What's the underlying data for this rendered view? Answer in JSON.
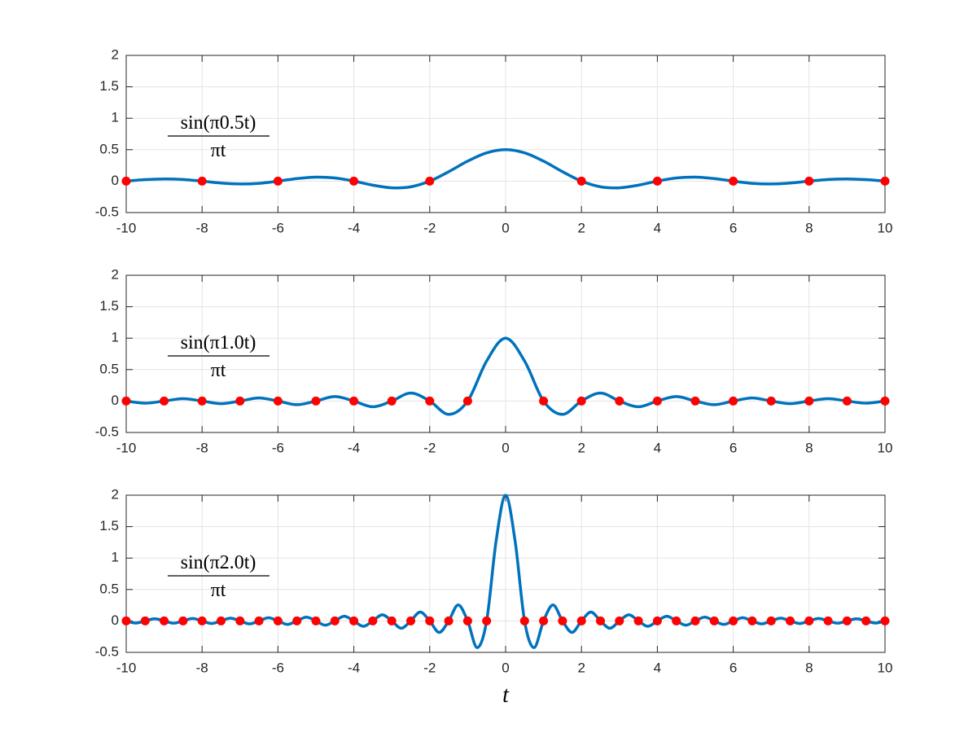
{
  "chart_data": [
    {
      "type": "line",
      "annotation": {
        "numerator": "sin(π0.5t)",
        "denominator": "πt"
      },
      "xlim": [
        -10,
        10
      ],
      "xticks": [
        -10,
        -8,
        -6,
        -4,
        -2,
        0,
        2,
        4,
        6,
        8,
        10
      ],
      "ylim": [
        -0.5,
        2
      ],
      "yticks": [
        -0.5,
        0,
        0.5,
        1,
        1.5,
        2
      ],
      "grid": true,
      "series": [
        {
          "style": "line",
          "color": "#0072bd",
          "x": [
            -10,
            -9.5,
            -9,
            -8.5,
            -8,
            -7.5,
            -7,
            -6.5,
            -6,
            -5.5,
            -5,
            -4.5,
            -4,
            -3.5,
            -3,
            -2.5,
            -2,
            -1.5,
            -1,
            -0.5,
            0,
            0.5,
            1,
            1.5,
            2,
            2.5,
            3,
            3.5,
            4,
            4.5,
            5,
            5.5,
            6,
            6.5,
            7,
            7.5,
            8,
            8.5,
            9,
            9.5,
            10
          ],
          "values": [
            0,
            0.024,
            0.035,
            0.027,
            0,
            -0.03,
            -0.045,
            -0.035,
            0,
            0.041,
            0.064,
            0.05,
            0,
            -0.064,
            -0.106,
            -0.09,
            0,
            0.15,
            0.318,
            0.45,
            0.5,
            0.45,
            0.318,
            0.15,
            0,
            -0.09,
            -0.106,
            -0.064,
            0,
            0.05,
            0.064,
            0.041,
            0,
            -0.035,
            -0.045,
            -0.03,
            0,
            0.027,
            0.035,
            0.024,
            0
          ]
        },
        {
          "style": "markers",
          "color": "#ff0000",
          "x": [
            -10,
            -8,
            -6,
            -4,
            -2,
            2,
            4,
            6,
            8,
            10
          ],
          "values": [
            0,
            0,
            0,
            0,
            0,
            0,
            0,
            0,
            0,
            0
          ]
        }
      ]
    },
    {
      "type": "line",
      "annotation": {
        "numerator": "sin(π1.0t)",
        "denominator": "πt"
      },
      "xlim": [
        -10,
        10
      ],
      "xticks": [
        -10,
        -8,
        -6,
        -4,
        -2,
        0,
        2,
        4,
        6,
        8,
        10
      ],
      "ylim": [
        -0.5,
        2
      ],
      "yticks": [
        -0.5,
        0,
        0.5,
        1,
        1.5,
        2
      ],
      "grid": true,
      "series": [
        {
          "style": "line",
          "color": "#0072bd",
          "x": [
            -10,
            -9.5,
            -9,
            -8.5,
            -8,
            -7.5,
            -7,
            -6.5,
            -6,
            -5.5,
            -5,
            -4.5,
            -4,
            -3.5,
            -3,
            -2.5,
            -2,
            -1.5,
            -1,
            -0.5,
            0,
            0.5,
            1,
            1.5,
            2,
            2.5,
            3,
            3.5,
            4,
            4.5,
            5,
            5.5,
            6,
            6.5,
            7,
            7.5,
            8,
            8.5,
            9,
            9.5,
            10
          ],
          "values": [
            0,
            -0.034,
            0,
            0.037,
            0,
            -0.042,
            0,
            0.049,
            0,
            -0.058,
            0,
            0.071,
            0,
            -0.091,
            0,
            0.127,
            0,
            -0.212,
            0,
            0.637,
            1,
            0.637,
            0,
            -0.212,
            0,
            0.127,
            0,
            -0.091,
            0,
            0.071,
            0,
            -0.058,
            0,
            0.049,
            0,
            -0.042,
            0,
            0.037,
            0,
            -0.034,
            0
          ]
        },
        {
          "style": "markers",
          "color": "#ff0000",
          "x": [
            -10,
            -9,
            -8,
            -7,
            -6,
            -5,
            -4,
            -3,
            -2,
            -1,
            1,
            2,
            3,
            4,
            5,
            6,
            7,
            8,
            9,
            10
          ],
          "values": [
            0,
            0,
            0,
            0,
            0,
            0,
            0,
            0,
            0,
            0,
            0,
            0,
            0,
            0,
            0,
            0,
            0,
            0,
            0,
            0
          ]
        }
      ]
    },
    {
      "type": "line",
      "annotation": {
        "numerator": "sin(π2.0t)",
        "denominator": "πt"
      },
      "xlabel": "t",
      "xlim": [
        -10,
        10
      ],
      "xticks": [
        -10,
        -8,
        -6,
        -4,
        -2,
        0,
        2,
        4,
        6,
        8,
        10
      ],
      "ylim": [
        -0.5,
        2
      ],
      "yticks": [
        -0.5,
        0,
        0.5,
        1,
        1.5,
        2
      ],
      "grid": true,
      "series": [
        {
          "style": "line",
          "color": "#0072bd",
          "x": [
            -10,
            -9.75,
            -9.5,
            -9.25,
            -9,
            -8.75,
            -8.5,
            -8.25,
            -8,
            -7.75,
            -7.5,
            -7.25,
            -7,
            -6.75,
            -6.5,
            -6.25,
            -6,
            -5.75,
            -5.5,
            -5.25,
            -5,
            -4.75,
            -4.5,
            -4.25,
            -4,
            -3.75,
            -3.5,
            -3.25,
            -3,
            -2.75,
            -2.5,
            -2.25,
            -2,
            -1.75,
            -1.5,
            -1.25,
            -1,
            -0.75,
            -0.5,
            -0.25,
            0,
            0.25,
            0.5,
            0.75,
            1,
            1.25,
            1.5,
            1.75,
            2,
            2.25,
            2.5,
            2.75,
            3,
            3.25,
            3.5,
            3.75,
            4,
            4.25,
            4.5,
            4.75,
            5,
            5.25,
            5.5,
            5.75,
            6,
            6.25,
            6.5,
            6.75,
            7,
            7.25,
            7.5,
            7.75,
            8,
            8.25,
            8.5,
            8.75,
            9,
            9.25,
            9.5,
            9.75,
            10
          ],
          "values": [
            0,
            -0.033,
            0,
            0.034,
            0,
            -0.036,
            0,
            0.039,
            0,
            -0.041,
            0,
            0.044,
            0,
            -0.047,
            0,
            0.051,
            0,
            -0.055,
            0,
            0.061,
            0,
            -0.067,
            0,
            0.075,
            0,
            -0.085,
            0,
            0.098,
            0,
            -0.116,
            0,
            0.141,
            0,
            -0.182,
            0,
            0.255,
            0,
            -0.424,
            0,
            1.273,
            2,
            1.273,
            0,
            -0.424,
            0,
            0.255,
            0,
            -0.182,
            0,
            0.141,
            0,
            -0.116,
            0,
            0.098,
            0,
            -0.085,
            0,
            0.075,
            0,
            -0.067,
            0,
            0.061,
            0,
            -0.055,
            0,
            0.051,
            0,
            -0.047,
            0,
            0.044,
            0,
            -0.041,
            0,
            0.039,
            0,
            -0.036,
            0,
            0.034,
            0,
            -0.033,
            0
          ]
        },
        {
          "style": "markers",
          "color": "#ff0000",
          "x": [
            -10,
            -9.5,
            -9,
            -8.5,
            -8,
            -7.5,
            -7,
            -6.5,
            -6,
            -5.5,
            -5,
            -4.5,
            -4,
            -3.5,
            -3,
            -2.5,
            -2,
            -1.5,
            -1,
            -0.5,
            0.5,
            1,
            1.5,
            2,
            2.5,
            3,
            3.5,
            4,
            4.5,
            5,
            5.5,
            6,
            6.5,
            7,
            7.5,
            8,
            8.5,
            9,
            9.5,
            10
          ],
          "values": [
            0,
            0,
            0,
            0,
            0,
            0,
            0,
            0,
            0,
            0,
            0,
            0,
            0,
            0,
            0,
            0,
            0,
            0,
            0,
            0,
            0,
            0,
            0,
            0,
            0,
            0,
            0,
            0,
            0,
            0,
            0,
            0,
            0,
            0,
            0,
            0,
            0,
            0,
            0,
            0
          ]
        }
      ]
    }
  ]
}
